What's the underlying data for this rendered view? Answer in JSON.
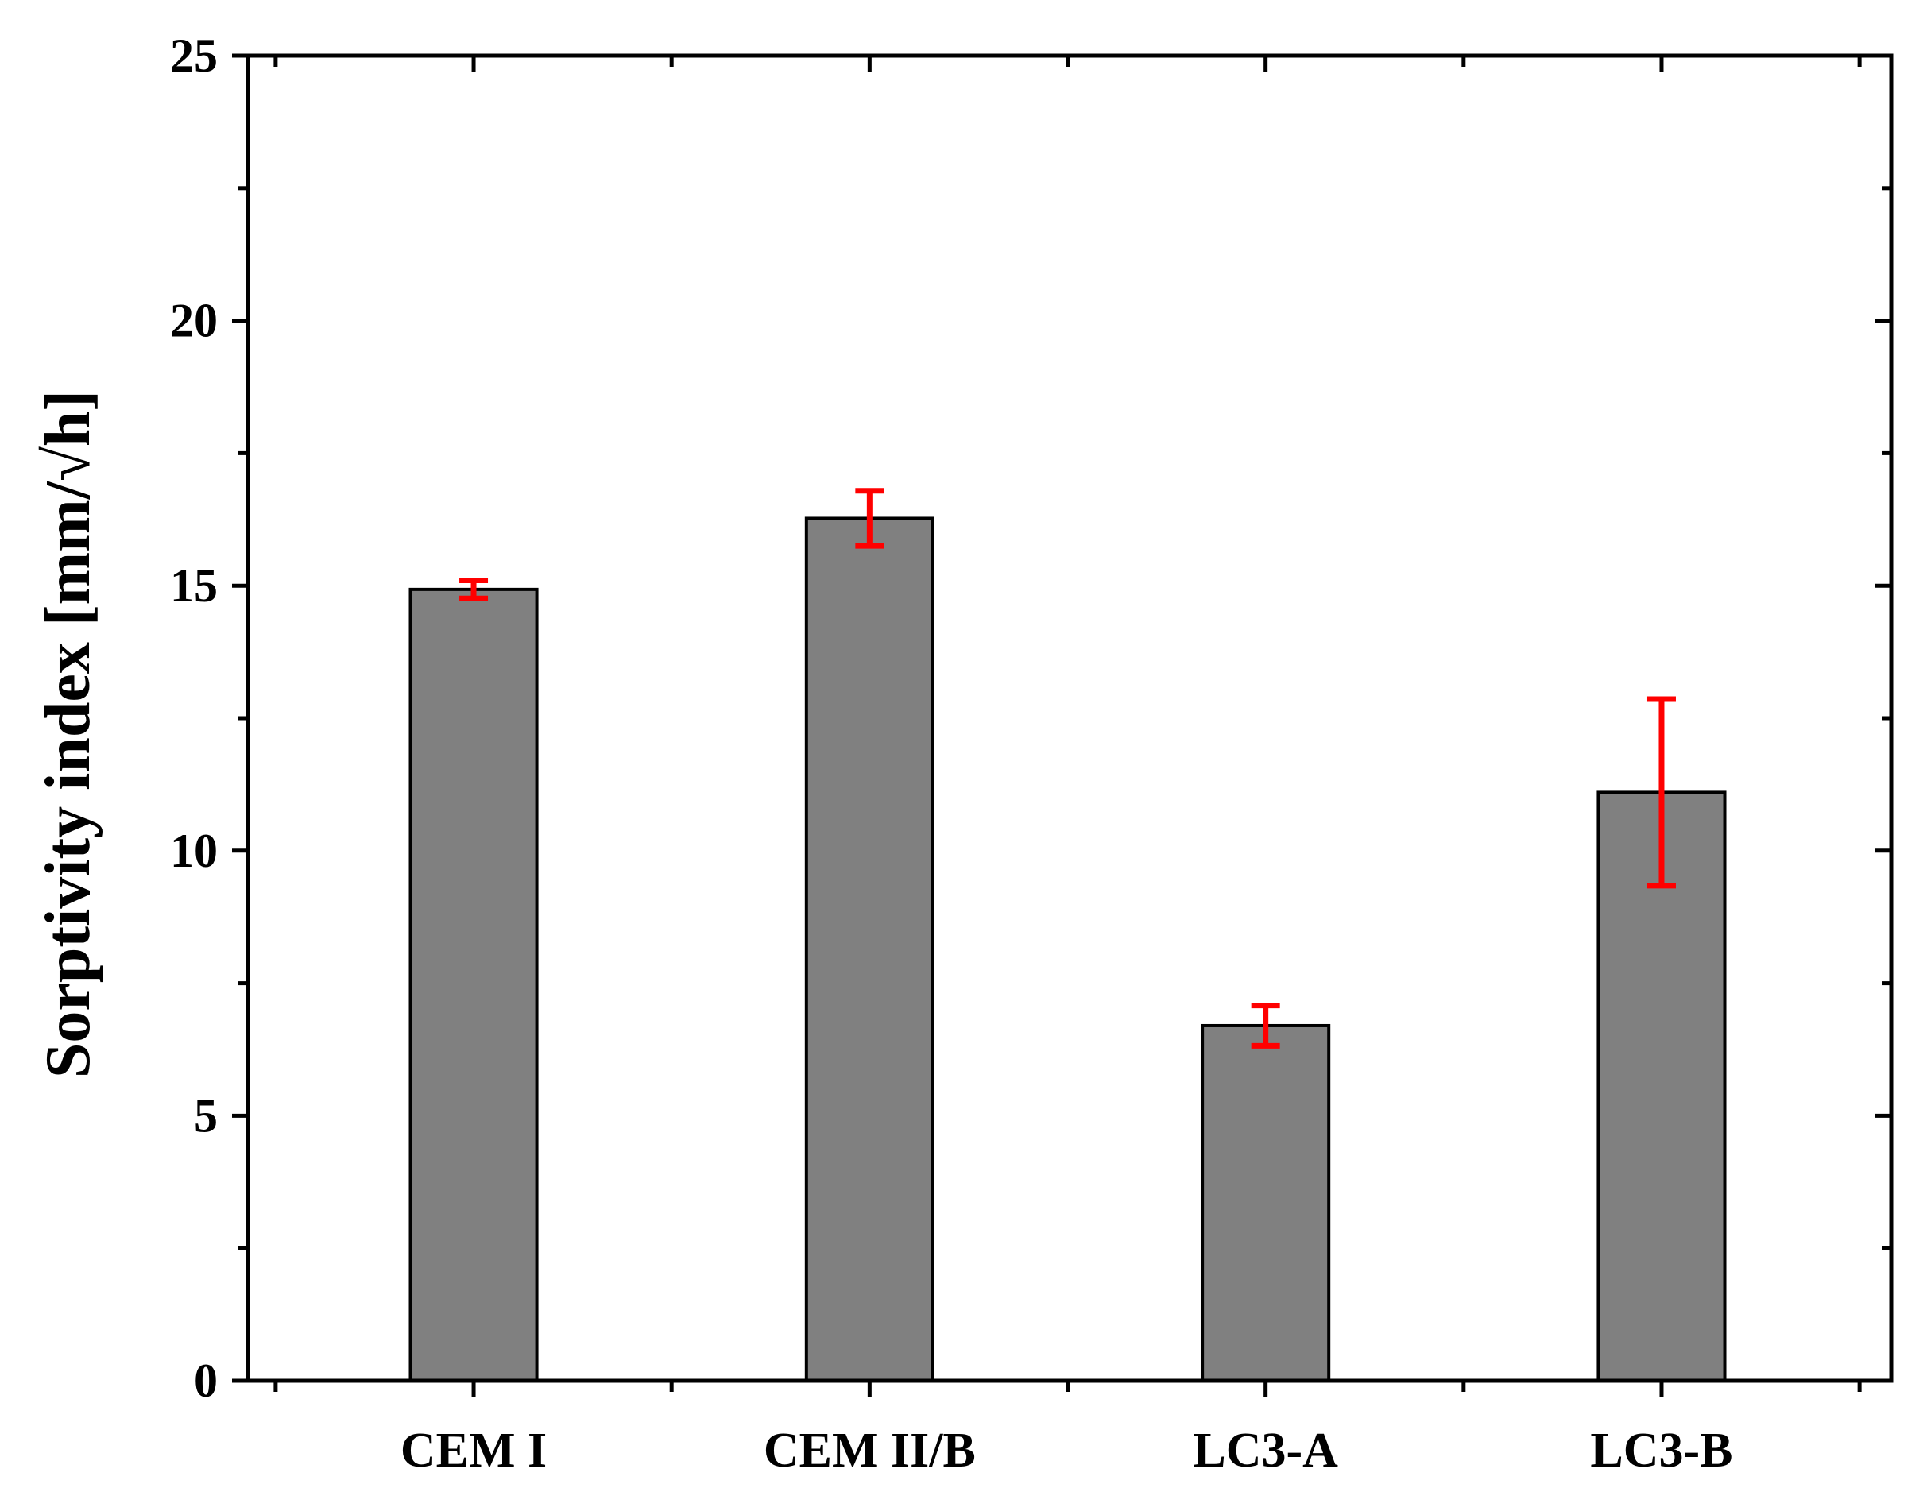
{
  "chart_data": {
    "type": "bar",
    "title": "",
    "xlabel": "",
    "ylabel": "Sorptivity index [mm/√h]",
    "categories": [
      "CEM I",
      "CEM II/B",
      "LC3-A",
      "LC3-B"
    ],
    "values": [
      14.93,
      16.27,
      6.7,
      11.1
    ],
    "error": [
      0.17,
      0.52,
      0.38,
      1.76
    ],
    "ylim": [
      0,
      25
    ],
    "yticks": [
      0,
      5,
      10,
      15,
      20,
      25
    ],
    "grid": false,
    "legend": "none",
    "colors": {
      "bar": "#808080",
      "bar_edge": "#000000",
      "error_bar": "#ff0000",
      "axis": "#000000"
    }
  }
}
